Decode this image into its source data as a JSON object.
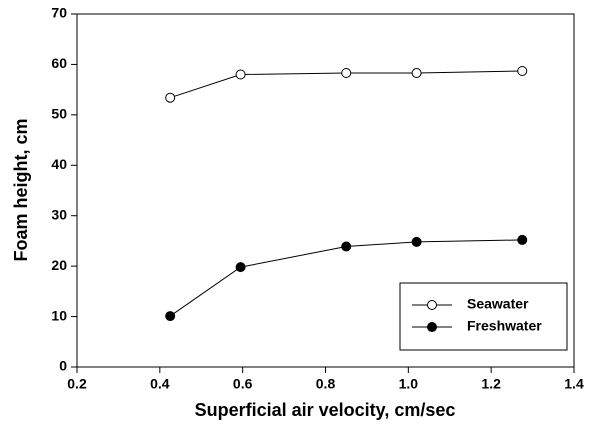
{
  "chart_data": {
    "type": "line",
    "xlabel": "Superficial air velocity, cm/sec",
    "ylabel": "Foam height, cm",
    "x": [
      0.425,
      0.595,
      0.85,
      1.02,
      1.275
    ],
    "series": [
      {
        "name": "Seawater",
        "color": "#000000",
        "marker": "open",
        "values": [
          53.4,
          58.0,
          58.3,
          58.3,
          58.7
        ]
      },
      {
        "name": "Freshwater",
        "color": "#000000",
        "marker": "filled",
        "values": [
          10.1,
          19.8,
          23.9,
          24.8,
          25.2
        ]
      }
    ],
    "xlim": [
      0.2,
      1.4
    ],
    "xticks": [
      0.2,
      0.4,
      0.6,
      0.8,
      {
        "value": 1,
        "label": "1.0"
      },
      1.2,
      1.4
    ],
    "ylim": [
      0,
      70
    ],
    "yticks": [
      0,
      10,
      20,
      30,
      40,
      50,
      60,
      70
    ],
    "grid": false,
    "legend": "lower right"
  }
}
